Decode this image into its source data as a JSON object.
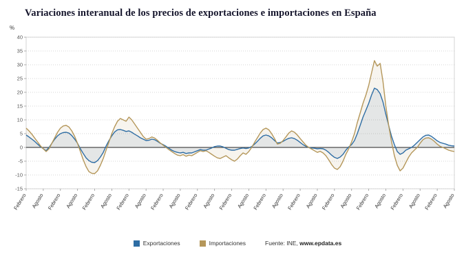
{
  "title": "Variaciones interanual de los precios de exportaciones e importaciones en España",
  "y_axis": {
    "unit_label": "%",
    "ticks": [
      40,
      35,
      30,
      25,
      20,
      15,
      10,
      5,
      0,
      -5,
      -10,
      -15
    ]
  },
  "legend": [
    {
      "label": "Exportaciones",
      "color": "#2e6da4"
    },
    {
      "label": "Importaciones",
      "color": "#b5975a"
    }
  ],
  "source": {
    "prefix": "Fuente: INE, ",
    "site": "www.epdata.es"
  },
  "chart_data": {
    "type": "line",
    "title": "Variaciones interanual de los precios de exportaciones e importaciones en España",
    "ylabel": "%",
    "ylim": [
      -15,
      40
    ],
    "grid": true,
    "legend_position": "bottom",
    "months_per_tick": 6,
    "x_tick_labels": [
      "Febrero",
      "Agosto",
      "Febrero",
      "Agosto",
      "Febrero",
      "Agosto",
      "Febrero",
      "Agosto",
      "Febrero",
      "Agosto",
      "Febrero",
      "Agosto",
      "Febrero",
      "Agosto",
      "Febrero",
      "Agosto",
      "Febrero",
      "Agosto",
      "Febrero",
      "Agosto",
      "Febrero",
      "Agosto",
      "Febrero",
      "Agosto",
      "Febrero",
      "Agosto"
    ],
    "series": [
      {
        "name": "Exportaciones",
        "color": "#2e6da4",
        "fill_opacity": 0.1,
        "values": [
          4.5,
          3.8,
          3,
          2.2,
          1.2,
          0.3,
          -0.5,
          -1.2,
          0,
          1.5,
          3,
          4.2,
          5,
          5.4,
          5.5,
          5.2,
          4.3,
          3,
          1.5,
          -0.5,
          -2.2,
          -3.8,
          -4.8,
          -5.4,
          -5.5,
          -4.8,
          -3.5,
          -1.8,
          0.5,
          2.5,
          4.2,
          5.6,
          6.4,
          6.5,
          6.2,
          5.8,
          6,
          5.5,
          4.8,
          4.2,
          3.5,
          3,
          2.5,
          2.6,
          3,
          2.8,
          2.2,
          1.5,
          1,
          0.4,
          -0.3,
          -1,
          -1.5,
          -1.8,
          -2,
          -1.8,
          -2.2,
          -2,
          -2,
          -1.6,
          -1.2,
          -0.8,
          -1,
          -1,
          -0.6,
          -0.2,
          0.3,
          0.5,
          0.5,
          0.2,
          -0.3,
          -0.8,
          -1,
          -1,
          -0.7,
          -0.4,
          -0.2,
          -0.4,
          -0.2,
          0.3,
          1.2,
          2.2,
          3.3,
          4.2,
          4.5,
          4.2,
          3.5,
          2.5,
          1.6,
          1.8,
          2.2,
          2.8,
          3.3,
          3.5,
          3.2,
          2.6,
          1.8,
          1,
          0.4,
          0,
          -0.2,
          -0.3,
          -0.5,
          -0.4,
          -0.5,
          -1,
          -1.8,
          -2.8,
          -3.6,
          -4,
          -3.5,
          -2.5,
          -1,
          0.2,
          1,
          2.5,
          5,
          8,
          11,
          13.5,
          16,
          19,
          21.5,
          21,
          19.5,
          16.5,
          12,
          8,
          4,
          1,
          -1.5,
          -2.5,
          -2,
          -1,
          -0.5,
          0,
          0.8,
          1.8,
          2.8,
          3.8,
          4.4,
          4.5,
          4,
          3.2,
          2.4,
          1.8,
          1.5,
          1.2,
          0.8,
          0.6,
          0.5
        ]
      },
      {
        "name": "Importaciones",
        "color": "#b5975a",
        "fill_opacity": 0.1,
        "values": [
          7,
          6,
          4.8,
          3.4,
          2,
          0.6,
          -0.5,
          -1.5,
          -0.5,
          1.5,
          3.5,
          5.5,
          7,
          7.8,
          8,
          7.4,
          6,
          4,
          1.5,
          -1.5,
          -4.5,
          -7,
          -8.8,
          -9.4,
          -9.5,
          -8.5,
          -6.5,
          -4,
          -1,
          2,
          5,
          7.5,
          9.5,
          10.5,
          10,
          9.5,
          11,
          10,
          8.5,
          7,
          5.5,
          4,
          3,
          3.2,
          3.8,
          3.4,
          2.6,
          1.6,
          0.8,
          0,
          -0.8,
          -1.5,
          -2.2,
          -2.8,
          -3,
          -2.6,
          -3.2,
          -2.8,
          -3,
          -2.4,
          -1.8,
          -1.2,
          -1.5,
          -1.2,
          -1.8,
          -2.5,
          -3.2,
          -3.8,
          -4,
          -3.5,
          -3,
          -3.8,
          -4.5,
          -5,
          -4.2,
          -3,
          -2,
          -2.5,
          -1.5,
          0,
          1.8,
          3.5,
          5.2,
          6.5,
          7,
          6.4,
          5,
          3.2,
          1.2,
          1.5,
          2.5,
          3.8,
          5.2,
          6,
          5.5,
          4.5,
          3.2,
          2,
          0.8,
          0,
          -0.6,
          -1.2,
          -1.8,
          -1.4,
          -2,
          -3,
          -4.5,
          -6.2,
          -7.5,
          -8,
          -7,
          -5,
          -2.5,
          -0.5,
          2,
          5,
          9,
          12.5,
          16,
          19,
          22.5,
          27,
          31.5,
          29.5,
          30.5,
          24,
          15,
          8,
          2,
          -3,
          -6.5,
          -8.5,
          -7.5,
          -5.5,
          -3.5,
          -2,
          -1,
          0,
          1.5,
          2.8,
          3.4,
          3.5,
          3,
          2.2,
          1.2,
          0.4,
          0,
          -0.5,
          -1,
          -1.3,
          -1.5
        ]
      }
    ]
  }
}
